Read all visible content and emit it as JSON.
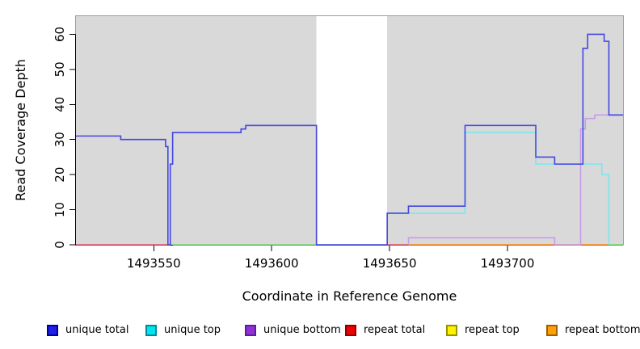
{
  "chart_data": {
    "type": "step-line",
    "title": "",
    "xlabel": "Coordinate in Reference Genome",
    "ylabel": "Read Coverage Depth",
    "xlim": [
      1493517,
      1493749
    ],
    "ylim": [
      0,
      65.4
    ],
    "x_ticks": [
      1493550,
      1493600,
      1493650,
      1493700
    ],
    "y_ticks": [
      0,
      10,
      20,
      30,
      40,
      50,
      60
    ],
    "panel_background": "#D9D9D9",
    "panel_border": "#9C9C9C",
    "background_regions": [
      {
        "x0": 1493517,
        "x1": 1493619
      },
      {
        "x0": 1493649,
        "x1": 1493749
      }
    ],
    "gap_region": {
      "x0": 1493619,
      "x1": 1493649
    },
    "series": [
      {
        "name": "repeat total",
        "color": "#E0586E",
        "segments": [
          {
            "points": [
              [
                1493517,
                0
              ]
            ],
            "end": 1493557
          },
          {
            "points": [
              [
                1493649,
                0
              ]
            ],
            "end": 1493658
          }
        ]
      },
      {
        "name": "repeat top",
        "color": "#7CD87C",
        "segments": [
          {
            "points": [
              [
                1493558,
                0
              ]
            ],
            "end": 1493619
          },
          {
            "points": [
              [
                1493743,
                0
              ]
            ],
            "end": 1493749
          }
        ]
      },
      {
        "name": "repeat bottom",
        "color": "#FF8C1E",
        "segments": [
          {
            "points": [
              [
                1493658,
                0
              ]
            ],
            "end": 1493743
          }
        ]
      },
      {
        "name": "unique top",
        "color": "#7BE6F0",
        "segments": [
          {
            "points": [
              [
                1493649,
                9
              ],
              [
                1493658,
                9
              ],
              [
                1493682,
                32
              ],
              [
                1493712,
                23
              ],
              [
                1493740,
                20
              ],
              [
                1493743,
                0
              ]
            ],
            "end": 1493743
          }
        ]
      },
      {
        "name": "unique bottom",
        "color": "#C79BEA",
        "segments": [
          {
            "points": [
              [
                1493557,
                0
              ],
              [
                1493557,
                23
              ],
              [
                1493558,
                32
              ],
              [
                1493587,
                33
              ],
              [
                1493589,
                34
              ],
              [
                1493619,
                0
              ]
            ],
            "end": 1493619
          },
          {
            "points": [
              [
                1493658,
                0
              ],
              [
                1493658,
                2
              ],
              [
                1493720,
                0
              ],
              [
                1493731,
                33
              ],
              [
                1493733,
                36
              ],
              [
                1493737,
                37
              ]
            ],
            "end": 1493749
          }
        ]
      },
      {
        "name": "unique total",
        "color": "#4348E2",
        "segments": [
          {
            "points": [
              [
                1493517,
                31
              ],
              [
                1493536,
                30
              ],
              [
                1493555,
                28
              ],
              [
                1493556,
                0
              ],
              [
                1493557,
                23
              ],
              [
                1493558,
                32
              ],
              [
                1493587,
                33
              ],
              [
                1493589,
                34
              ],
              [
                1493619,
                0
              ],
              [
                1493649,
                9
              ],
              [
                1493658,
                11
              ],
              [
                1493682,
                34
              ],
              [
                1493712,
                25
              ],
              [
                1493720,
                23
              ],
              [
                1493732,
                56
              ],
              [
                1493734,
                60
              ],
              [
                1493741,
                58
              ],
              [
                1493743,
                37
              ]
            ],
            "end": 1493749
          }
        ]
      }
    ],
    "legend": {
      "items": [
        {
          "label": "unique total",
          "fill": "#1F1FE8",
          "border": "#0000A0"
        },
        {
          "label": "unique top",
          "fill": "#00E5EE",
          "border": "#008B9B"
        },
        {
          "label": "unique bottom",
          "fill": "#9330D8",
          "border": "#5B1E9E"
        },
        {
          "label": "repeat total",
          "fill": "#F00000",
          "border": "#900000"
        },
        {
          "label": "repeat top",
          "fill": "#FFF200",
          "border": "#999200"
        },
        {
          "label": "repeat bottom",
          "fill": "#FFA00A",
          "border": "#A06000"
        }
      ]
    }
  }
}
